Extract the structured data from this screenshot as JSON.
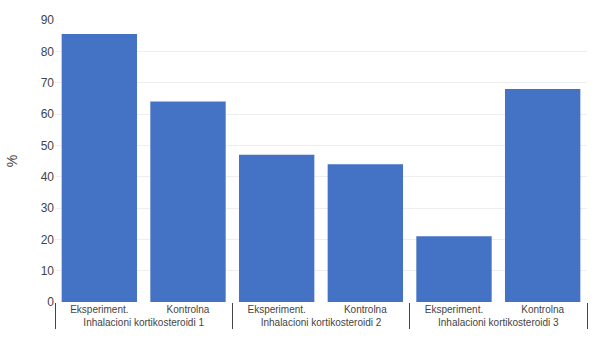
{
  "chart_data": {
    "type": "bar",
    "categories": [
      [
        "Inhalacioni kortikosteroidi 1",
        "Eksperiment."
      ],
      [
        "Inhalacioni kortikosteroidi 1",
        "Kontrolna"
      ],
      [
        "Inhalacioni kortikosteroidi 2",
        "Eksperiment."
      ],
      [
        "Inhalacioni kortikosteroidi 2",
        "Kontrolna"
      ],
      [
        "Inhalacioni kortikosteroidi 3",
        "Eksperiment."
      ],
      [
        "Inhalacioni kortikosteroidi 3",
        "Kontrolna"
      ]
    ],
    "values": [
      85.5,
      64,
      47,
      44,
      21,
      68
    ],
    "color": "#4472C4",
    "ylabel": "%",
    "ylim": [
      0,
      90
    ],
    "yticks": [
      0,
      10,
      20,
      30,
      40,
      50,
      60,
      70,
      80,
      90
    ],
    "grid": true
  }
}
